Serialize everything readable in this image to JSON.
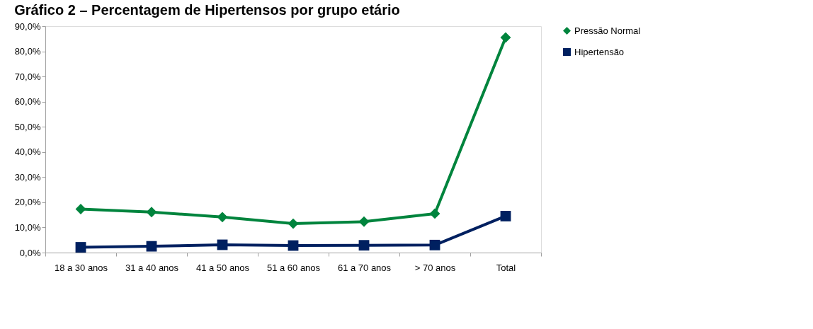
{
  "chart_data": {
    "type": "line",
    "title": "Gráfico 2 – Percentagem de Hipertensos por grupo etário",
    "categories": [
      "18 a 30 anos",
      "31 a 40 anos",
      "41 a 50 anos",
      "51 a 60 anos",
      "61 a 70 anos",
      "> 70 anos",
      "Total"
    ],
    "series": [
      {
        "name": "Pressão Normal",
        "color": "#00843d",
        "marker": "diamond",
        "values": [
          17.3,
          16.1,
          14.1,
          11.5,
          12.3,
          15.5,
          85.5
        ]
      },
      {
        "name": "Hipertensão",
        "color": "#002060",
        "marker": "square",
        "values": [
          2.1,
          2.5,
          3.1,
          2.8,
          2.9,
          3.0,
          14.5
        ]
      }
    ],
    "ylim": [
      0,
      90
    ],
    "yticks": [
      {
        "value": 0,
        "label": "0,0%"
      },
      {
        "value": 10,
        "label": "10,0%"
      },
      {
        "value": 20,
        "label": "20,0%"
      },
      {
        "value": 30,
        "label": "30,0%"
      },
      {
        "value": 40,
        "label": "40,0%"
      },
      {
        "value": 50,
        "label": "50,0%"
      },
      {
        "value": 60,
        "label": "60,0%"
      },
      {
        "value": 70,
        "label": "70,0%"
      },
      {
        "value": 80,
        "label": "80,0%"
      },
      {
        "value": 90,
        "label": "90,0%"
      }
    ],
    "grid": false,
    "legend": "right",
    "line_style": "solid"
  }
}
